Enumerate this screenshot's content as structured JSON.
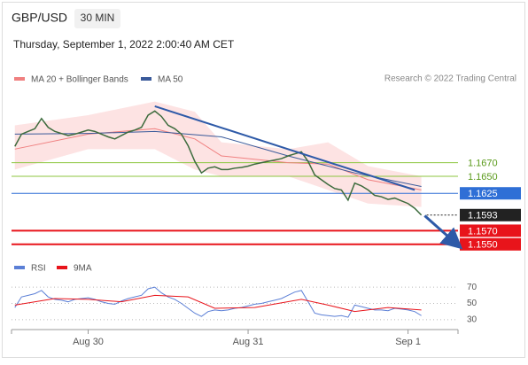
{
  "header": {
    "symbol": "GBP/USD",
    "interval": "30 MIN",
    "datetime": "Thursday, September 1, 2022 2:00:40 AM CET"
  },
  "chart_data": [
    {
      "type": "line",
      "source": "Research © 2022 Trading Central",
      "xlim": [
        -11.5,
        55.5
      ],
      "ylim": [
        1.1538,
        1.1779
      ],
      "series": [
        {
          "name": "MA 20 + Bollinger Bands",
          "color": "#f08080",
          "band_color": "#fde3e3",
          "x": [
            -11,
            0,
            10,
            16,
            20,
            30,
            36,
            42,
            50
          ],
          "values": [
            1.169,
            1.1712,
            1.172,
            1.1705,
            1.168,
            1.167,
            1.1668,
            1.1645,
            1.163
          ],
          "upper": [
            1.1725,
            1.174,
            1.176,
            1.1745,
            1.17,
            1.169,
            1.17,
            1.1665,
            1.165
          ],
          "lower": [
            1.166,
            1.169,
            1.169,
            1.166,
            1.165,
            1.165,
            1.163,
            1.161,
            1.1605
          ]
        },
        {
          "name": "MA 50",
          "color": "#3a5a9a",
          "x": [
            -11,
            0,
            10,
            20,
            30,
            40,
            50
          ],
          "values": [
            1.1712,
            1.1713,
            1.1716,
            1.1708,
            1.168,
            1.1655,
            1.1635
          ]
        },
        {
          "color": "#3d6b3d",
          "x": [
            -11,
            -10,
            -9,
            -8,
            -7,
            -6,
            -5,
            -4,
            -3,
            -2,
            -1,
            0,
            1,
            2,
            3,
            4,
            5,
            6,
            7,
            8,
            9,
            10,
            11,
            12,
            13,
            14,
            15,
            16,
            17,
            18,
            19,
            20,
            21,
            22,
            23,
            24,
            25,
            26,
            27,
            28,
            29,
            30,
            31,
            32,
            33,
            34,
            35,
            36,
            37,
            38,
            39,
            40,
            41,
            42,
            43,
            44,
            45,
            46,
            47,
            48,
            49,
            50
          ],
          "values": [
            1.1694,
            1.1712,
            1.1716,
            1.172,
            1.1735,
            1.1722,
            1.1716,
            1.1713,
            1.171,
            1.1712,
            1.1715,
            1.1718,
            1.1716,
            1.1712,
            1.1708,
            1.1705,
            1.171,
            1.1715,
            1.1718,
            1.1722,
            1.174,
            1.1746,
            1.1738,
            1.1725,
            1.172,
            1.1712,
            1.1695,
            1.1672,
            1.1655,
            1.1662,
            1.1664,
            1.166,
            1.166,
            1.1662,
            1.1663,
            1.1665,
            1.1668,
            1.167,
            1.1672,
            1.1674,
            1.1676,
            1.168,
            1.1683,
            1.1686,
            1.1672,
            1.1652,
            1.1645,
            1.1638,
            1.1632,
            1.163,
            1.1615,
            1.164,
            1.1636,
            1.163,
            1.1622,
            1.162,
            1.1616,
            1.1618,
            1.1614,
            1.161,
            1.1603,
            1.1593
          ]
        }
      ],
      "levels": [
        {
          "value": 1.167,
          "label": "1.1670",
          "color": "#8cc63f",
          "style": "thin",
          "box": false
        },
        {
          "value": 1.165,
          "label": "1.1650",
          "color": "#8cc63f",
          "style": "thin",
          "box": false
        },
        {
          "value": 1.1625,
          "label": "1.1625",
          "color": "#2f6fd6",
          "style": "line",
          "box": true
        },
        {
          "value": 1.1593,
          "label": "1.1593",
          "color": "#222222",
          "style": "dotted",
          "box": true
        },
        {
          "value": 1.157,
          "label": "1.1570",
          "color": "#e8141b",
          "style": "thick",
          "box": true
        },
        {
          "value": 1.155,
          "label": "1.1550",
          "color": "#e8141b",
          "style": "thick",
          "box": true
        }
      ],
      "trendline": {
        "color": "#2e5aa8",
        "x": [
          10,
          49
        ],
        "values": [
          1.1753,
          1.163
        ]
      },
      "arrow": {
        "color": "#2e5aa8",
        "x": [
          50.5,
          55
        ],
        "values": [
          1.1592,
          1.1553
        ]
      }
    },
    {
      "type": "line",
      "xlim": [
        -11.5,
        55.5
      ],
      "ylim": [
        20,
        80
      ],
      "yticks": [
        30,
        50,
        70
      ],
      "xticks": [
        {
          "value": 0,
          "label": "Aug 30"
        },
        {
          "value": 24,
          "label": "Aug 31"
        },
        {
          "value": 48,
          "label": "Sep 1"
        }
      ],
      "series": [
        {
          "name": "RSI",
          "color": "#5b7fd6",
          "x": [
            -11,
            -10,
            -9,
            -8,
            -7,
            -6,
            -5,
            -4,
            -3,
            -2,
            -1,
            0,
            1,
            2,
            3,
            4,
            5,
            6,
            7,
            8,
            9,
            10,
            11,
            12,
            13,
            14,
            15,
            16,
            17,
            18,
            19,
            20,
            21,
            22,
            23,
            24,
            25,
            26,
            27,
            28,
            29,
            30,
            31,
            32,
            33,
            34,
            35,
            36,
            37,
            38,
            39,
            40,
            41,
            42,
            43,
            44,
            45,
            46,
            47,
            48,
            49,
            50
          ],
          "values": [
            45,
            58,
            60,
            62,
            66,
            58,
            55,
            54,
            52,
            55,
            56,
            57,
            55,
            52,
            50,
            49,
            53,
            56,
            58,
            60,
            68,
            70,
            63,
            58,
            55,
            50,
            44,
            38,
            34,
            40,
            42,
            41,
            42,
            44,
            45,
            47,
            49,
            50,
            52,
            54,
            56,
            60,
            64,
            66,
            52,
            38,
            36,
            35,
            34,
            35,
            33,
            48,
            46,
            44,
            42,
            42,
            41,
            44,
            43,
            42,
            40,
            35
          ]
        },
        {
          "name": "9MA",
          "color": "#e8141b",
          "x": [
            -11,
            -5,
            0,
            5,
            10,
            15,
            19,
            25,
            32,
            36,
            40,
            45,
            50
          ],
          "values": [
            48,
            56,
            55,
            52,
            60,
            58,
            44,
            45,
            55,
            48,
            40,
            45,
            42
          ]
        }
      ]
    }
  ]
}
